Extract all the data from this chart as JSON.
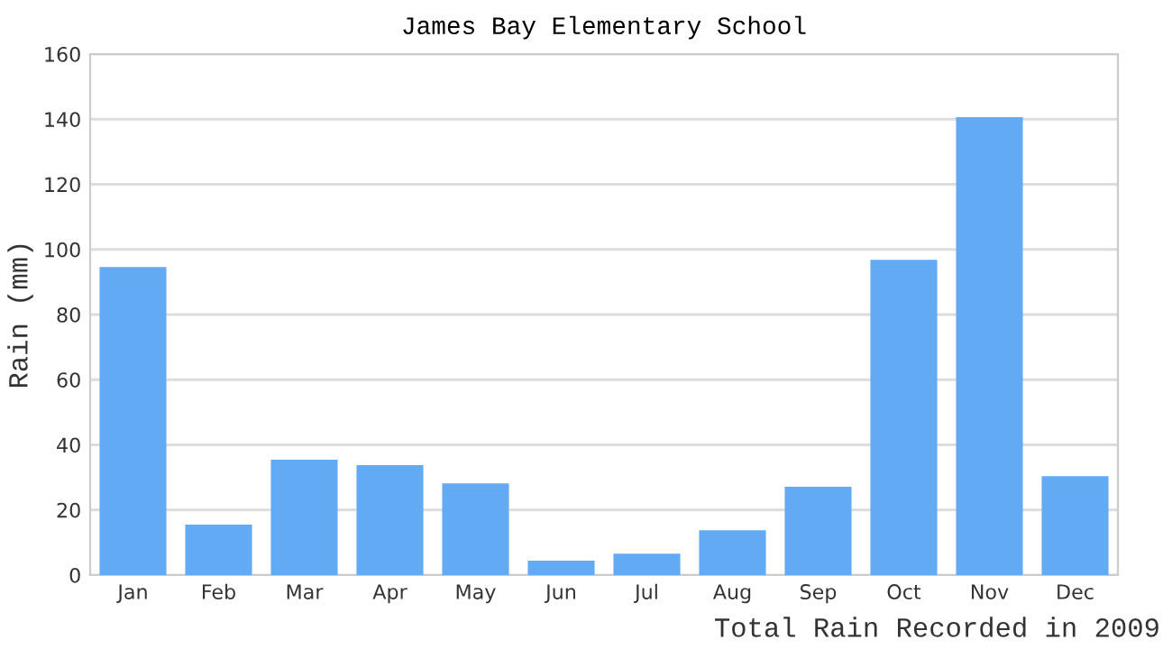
{
  "chart_data": {
    "type": "bar",
    "title": "James Bay Elementary School",
    "ylabel": "Rain (mm)",
    "annotations": [
      "Total Rain Recorded in 2009"
    ],
    "categories": [
      "Jan",
      "Feb",
      "Mar",
      "Apr",
      "May",
      "Jun",
      "Jul",
      "Aug",
      "Sep",
      "Oct",
      "Nov",
      "Dec"
    ],
    "values": [
      94.6,
      15.5,
      35.4,
      33.8,
      28.2,
      4.4,
      6.6,
      13.8,
      27.1,
      96.8,
      140.6,
      30.4
    ],
    "color": "#62aaf4",
    "ylim": [
      0,
      160
    ],
    "yticks": [
      0,
      20,
      40,
      60,
      80,
      100,
      120,
      140,
      160
    ],
    "grid": "y",
    "legend": false
  }
}
